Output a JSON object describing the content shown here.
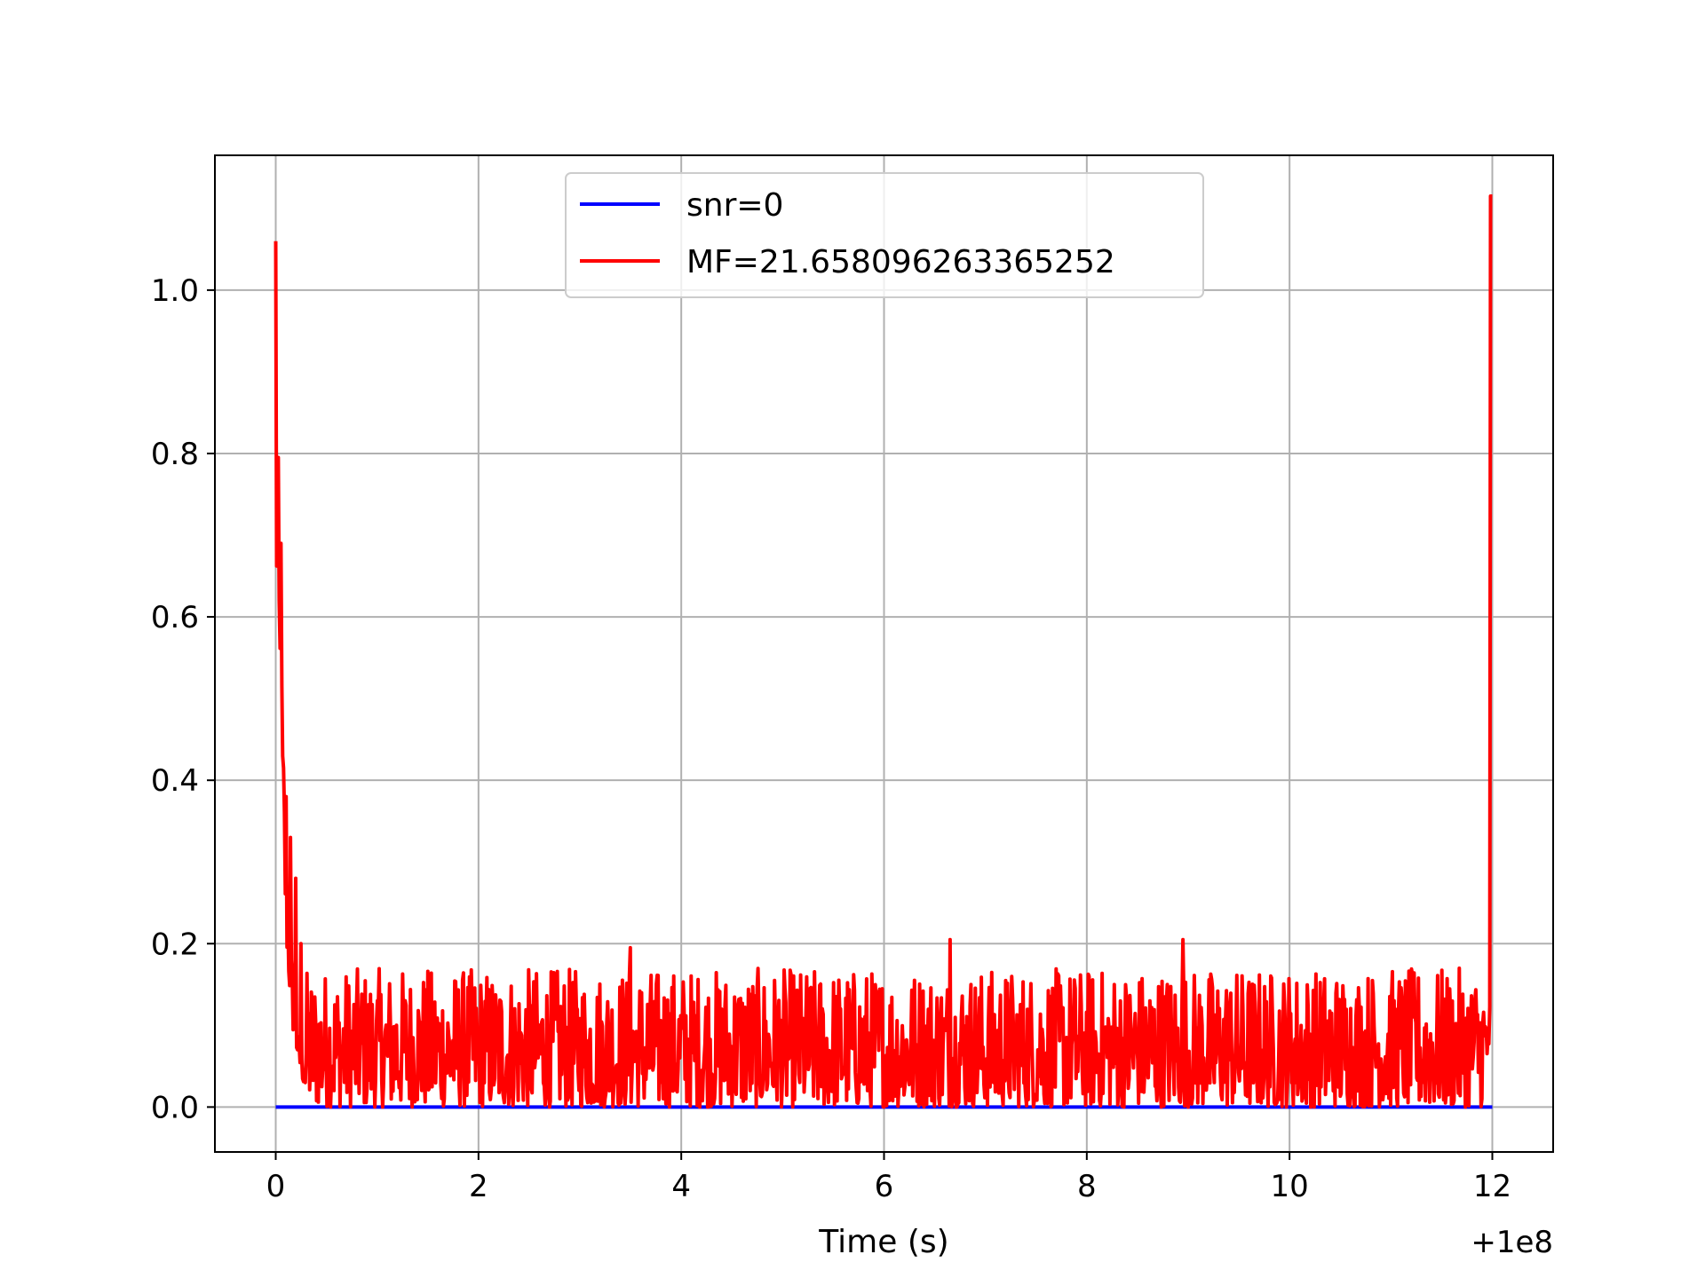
{
  "chart_data": {
    "type": "line",
    "xlabel": "Time (s)",
    "ylabel": "",
    "x_offset_label": "+1e8",
    "xlim": [
      -0.6,
      12.6
    ],
    "ylim": [
      -0.055,
      1.165
    ],
    "x_ticks": [
      0,
      2,
      4,
      6,
      8,
      10,
      12
    ],
    "x_tick_labels": [
      "0",
      "2",
      "4",
      "6",
      "8",
      "10",
      "12"
    ],
    "y_ticks": [
      0.0,
      0.2,
      0.4,
      0.6,
      0.8,
      1.0
    ],
    "y_tick_labels": [
      "0.0",
      "0.2",
      "0.4",
      "0.6",
      "0.8",
      "1.0"
    ],
    "grid": true,
    "legend_position": "upper-center",
    "series": [
      {
        "name": "snr=0",
        "color": "#0000ff",
        "x": [
          0,
          12
        ],
        "y": [
          0.0,
          0.0
        ]
      },
      {
        "name": "MF=21.658096263365252",
        "color": "#ff0000",
        "x_range": [
          0,
          12
        ],
        "peaks": [
          {
            "x": 0.0,
            "y": 1.06
          },
          {
            "x": 0.05,
            "y": 0.69
          },
          {
            "x": 0.1,
            "y": 0.38
          },
          {
            "x": 0.15,
            "y": 0.33
          },
          {
            "x": 0.2,
            "y": 0.28
          },
          {
            "x": 0.25,
            "y": 0.2
          },
          {
            "x": 3.5,
            "y": 0.195
          },
          {
            "x": 6.65,
            "y": 0.205
          },
          {
            "x": 8.95,
            "y": 0.205
          },
          {
            "x": 11.98,
            "y": 1.115
          }
        ],
        "noise_floor": 0.0,
        "noise_typical_max": 0.17
      }
    ]
  }
}
